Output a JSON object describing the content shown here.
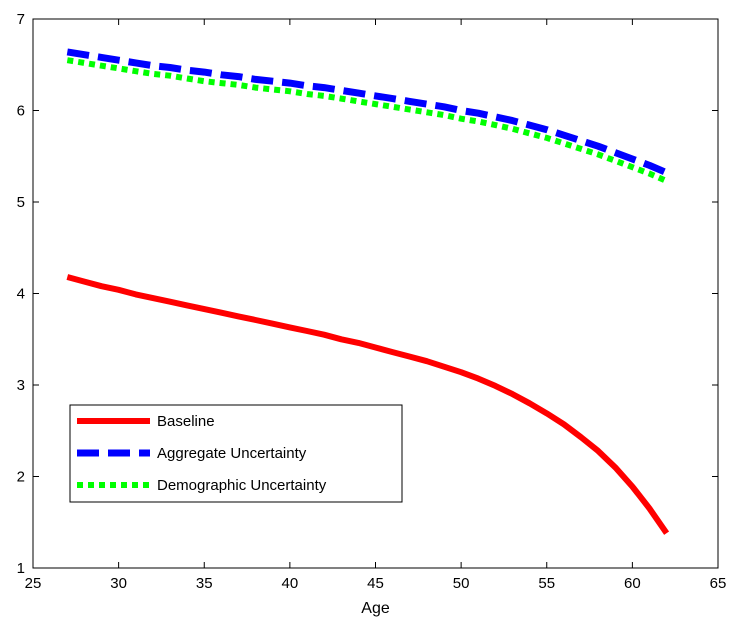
{
  "chart_data": {
    "type": "line",
    "title": "",
    "xlabel": "Age",
    "ylabel": "",
    "xlim": [
      25,
      65
    ],
    "ylim": [
      1,
      7
    ],
    "xticks": [
      25,
      30,
      35,
      40,
      45,
      50,
      55,
      60,
      65
    ],
    "yticks": [
      1,
      2,
      3,
      4,
      5,
      6,
      7
    ],
    "grid": false,
    "legend_position": "lower-left",
    "x": [
      27,
      28,
      29,
      30,
      31,
      32,
      33,
      34,
      35,
      36,
      37,
      38,
      39,
      40,
      41,
      42,
      43,
      44,
      45,
      46,
      47,
      48,
      49,
      50,
      51,
      52,
      53,
      54,
      55,
      56,
      57,
      58,
      59,
      60,
      61,
      62
    ],
    "series": [
      {
        "name": "Baseline",
        "color": "#ff0000",
        "style": "solid",
        "values": [
          4.18,
          4.13,
          4.08,
          4.04,
          3.99,
          3.95,
          3.91,
          3.87,
          3.83,
          3.79,
          3.75,
          3.71,
          3.67,
          3.63,
          3.59,
          3.55,
          3.5,
          3.46,
          3.41,
          3.36,
          3.31,
          3.26,
          3.2,
          3.14,
          3.07,
          2.99,
          2.9,
          2.8,
          2.69,
          2.57,
          2.43,
          2.28,
          2.1,
          1.89,
          1.65,
          1.38
        ]
      },
      {
        "name": "Aggregate Uncertainty",
        "color": "#0000ff",
        "style": "dashed",
        "values": [
          6.64,
          6.61,
          6.58,
          6.55,
          6.52,
          6.49,
          6.47,
          6.44,
          6.42,
          6.39,
          6.37,
          6.34,
          6.32,
          6.3,
          6.27,
          6.25,
          6.22,
          6.19,
          6.16,
          6.13,
          6.1,
          6.07,
          6.04,
          6.0,
          5.97,
          5.93,
          5.89,
          5.84,
          5.79,
          5.73,
          5.67,
          5.61,
          5.54,
          5.47,
          5.4,
          5.32
        ]
      },
      {
        "name": "Demographic Uncertainty",
        "color": "#00ff00",
        "style": "dotted",
        "values": [
          6.55,
          6.52,
          6.49,
          6.46,
          6.43,
          6.4,
          6.38,
          6.35,
          6.32,
          6.3,
          6.28,
          6.25,
          6.23,
          6.21,
          6.18,
          6.16,
          6.13,
          6.1,
          6.07,
          6.04,
          6.01,
          5.98,
          5.95,
          5.91,
          5.88,
          5.84,
          5.8,
          5.75,
          5.7,
          5.64,
          5.58,
          5.52,
          5.45,
          5.38,
          5.31,
          5.23
        ]
      }
    ]
  }
}
